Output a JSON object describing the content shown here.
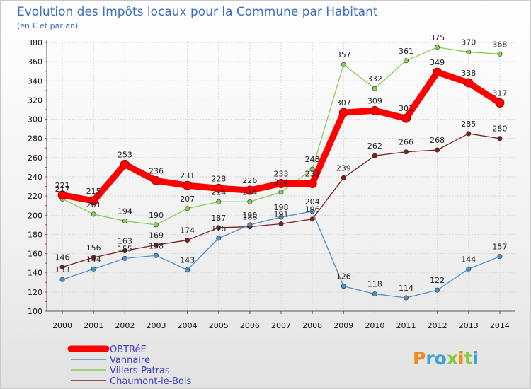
{
  "title": "Evolution des Impôts locaux pour la Commune par Habitant",
  "subtitle": "(en € et par an)",
  "logo": "Proxiti",
  "colors": {
    "title": "#3c6fbf",
    "legend_text": "#3c3cc8"
  },
  "chart_data": {
    "type": "line",
    "title": "Evolution des Impôts locaux pour la Commune par Habitant",
    "subtitle": "(en € et par an)",
    "xlabel": "",
    "ylabel": "",
    "categories": [
      "2000",
      "2001",
      "2002",
      "2003",
      "2004",
      "2005",
      "2006",
      "2007",
      "2008",
      "2009",
      "2010",
      "2011",
      "2012",
      "2013",
      "2014"
    ],
    "ylim": [
      100,
      380
    ],
    "yticks": [
      100,
      120,
      140,
      160,
      180,
      200,
      220,
      240,
      260,
      280,
      300,
      320,
      340,
      360,
      380
    ],
    "grid": true,
    "legend_position": "bottom-left",
    "series": [
      {
        "name": "OBTRéE",
        "color": "#ff0000",
        "values": [
          221,
          215,
          253,
          236,
          231,
          228,
          226,
          233,
          233,
          307,
          309,
          301,
          349,
          338,
          317
        ]
      },
      {
        "name": "Vannaire",
        "color": "#4f90c8",
        "values": [
          133,
          144,
          155,
          158,
          143,
          176,
          190,
          198,
          204,
          126,
          118,
          114,
          122,
          144,
          157
        ]
      },
      {
        "name": "Villers-Patras",
        "color": "#88cc55",
        "values": [
          217,
          201,
          194,
          190,
          207,
          214,
          214,
          224,
          248,
          357,
          332,
          361,
          375,
          370,
          368
        ]
      },
      {
        "name": "Chaumont-le-Bois",
        "color": "#7a1e1e",
        "values": [
          146,
          156,
          163,
          169,
          174,
          187,
          188,
          191,
          196,
          239,
          262,
          266,
          268,
          285,
          280
        ]
      }
    ]
  }
}
